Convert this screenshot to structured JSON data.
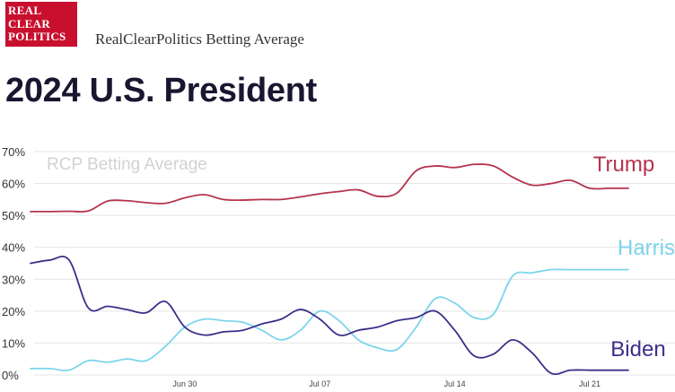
{
  "header": {
    "logo_lines": [
      "REAL",
      "CLEAR",
      "POLITICS"
    ],
    "brand_title": "RealClearPolitics Betting Average",
    "page_title": "2024 U.S. President"
  },
  "chart_data": {
    "type": "line",
    "watermark": "RCP Betting Average",
    "ylim": [
      0,
      70
    ],
    "yticks": [
      0,
      10,
      20,
      30,
      40,
      50,
      60,
      70
    ],
    "ytick_labels": [
      "0%",
      "10%",
      "20%",
      "30%",
      "40%",
      "50%",
      "60%",
      "70%"
    ],
    "xticks": [
      {
        "label": "Jun 30",
        "index": 8
      },
      {
        "label": "Jul 07",
        "index": 15
      },
      {
        "label": "Jul 14",
        "index": 22
      },
      {
        "label": "Jul 21",
        "index": 29
      }
    ],
    "grid": true,
    "x": [
      0,
      1,
      2,
      3,
      4,
      5,
      6,
      7,
      8,
      9,
      10,
      11,
      12,
      13,
      14,
      15,
      16,
      17,
      18,
      19,
      20,
      21,
      22,
      23,
      24,
      25,
      26,
      27,
      28,
      29,
      30,
      31
    ],
    "series": [
      {
        "name": "Trump",
        "color": "#b5334d",
        "values": [
          51.2,
          51.2,
          51.3,
          51.4,
          54.5,
          54.6,
          54.0,
          53.8,
          55.5,
          56.5,
          55.0,
          54.8,
          55.0,
          55.0,
          55.8,
          56.8,
          57.5,
          58.0,
          56.0,
          57.0,
          64.0,
          65.5,
          65.0,
          66.0,
          65.5,
          62.0,
          59.5,
          60.0,
          61.0,
          58.5,
          58.5,
          58.5
        ]
      },
      {
        "name": "Harris",
        "color": "#7dd4ec",
        "values": [
          2.0,
          2.0,
          1.5,
          4.5,
          4.0,
          5.0,
          4.5,
          9.0,
          15.0,
          17.5,
          17.0,
          16.5,
          14.0,
          11.0,
          14.0,
          20.0,
          17.0,
          11.0,
          8.5,
          8.0,
          15.0,
          24.0,
          22.5,
          18.0,
          19.0,
          31.0,
          32.0,
          33.0,
          33.0,
          33.0,
          33.0,
          33.0
        ]
      },
      {
        "name": "Biden",
        "color": "#3b2f8a",
        "values": [
          35.0,
          36.0,
          36.0,
          21.0,
          21.5,
          20.5,
          19.5,
          23.0,
          15.0,
          12.5,
          13.5,
          14.0,
          16.0,
          17.5,
          20.5,
          17.5,
          12.5,
          14.0,
          15.0,
          17.0,
          18.0,
          20.0,
          14.0,
          6.0,
          6.5,
          11.0,
          7.0,
          0.5,
          1.5,
          1.5,
          1.5,
          1.5
        ]
      }
    ]
  }
}
